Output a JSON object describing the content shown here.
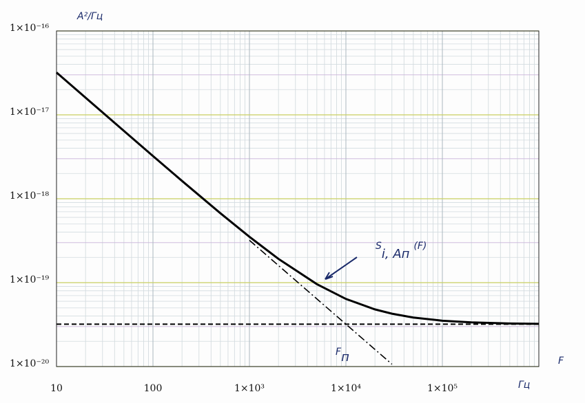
{
  "chart_data": {
    "type": "line",
    "y_label": "A²/Гц",
    "x_label": "F",
    "x_unit": "Гц",
    "curve_label": {
      "main": "S",
      "sub": "i, Aп",
      "arg": "(F)"
    },
    "corner_label": {
      "main": "F",
      "sub": "п"
    },
    "xscale": "log",
    "yscale": "log",
    "grid": true,
    "xlim": [
      10,
      1000000
    ],
    "ylim": [
      1e-20,
      1e-16
    ],
    "xticks": [
      10,
      100,
      {
        "value": 1000,
        "label": "1×10³"
      },
      {
        "value": 10000,
        "label": "1×10⁴"
      },
      {
        "value": 100000,
        "label": "1×10⁵"
      }
    ],
    "yticks": [
      {
        "value": 1e-16,
        "label": "1×10⁻¹⁶"
      },
      {
        "value": 1e-17,
        "label": "1×10⁻¹⁷"
      },
      {
        "value": 1e-18,
        "label": "1×10⁻¹⁸"
      },
      {
        "value": 1e-19,
        "label": "1×10⁻¹⁹"
      },
      {
        "value": 1e-20,
        "label": "1×10⁻²⁰"
      }
    ],
    "x": [
      10,
      20,
      50,
      100,
      200,
      500,
      1000,
      2000,
      5000,
      10000,
      20000,
      30000,
      50000,
      100000,
      200000,
      500000,
      1000000
    ],
    "series": [
      {
        "color": "#000000",
        "style": "solid",
        "values": [
          3.2e-17,
          1.6032e-17,
          6.432e-18,
          3.232e-18,
          1.632e-18,
          6.72e-19,
          3.52e-19,
          1.92e-19,
          9.6e-20,
          6.4e-20,
          4.8e-20,
          4.267e-20,
          3.84e-20,
          3.52e-20,
          3.36e-20,
          3.264e-20,
          3.232e-20
        ]
      },
      {
        "color": "#000000",
        "style": "dashdot",
        "values": [
          null,
          null,
          null,
          null,
          null,
          null,
          3.2e-19,
          1.6e-19,
          6.4e-20,
          3.2e-20,
          1.6e-20,
          1.067e-20,
          null,
          null,
          null,
          null,
          null
        ]
      },
      {
        "color": "#000000",
        "style": "dashed",
        "values": [
          3.2e-20,
          3.2e-20,
          3.2e-20,
          3.2e-20,
          3.2e-20,
          3.2e-20,
          3.2e-20,
          3.2e-20,
          3.2e-20,
          3.2e-20,
          3.2e-20,
          3.2e-20,
          3.2e-20,
          3.2e-20,
          3.2e-20,
          3.2e-20,
          3.2e-20
        ]
      }
    ]
  }
}
